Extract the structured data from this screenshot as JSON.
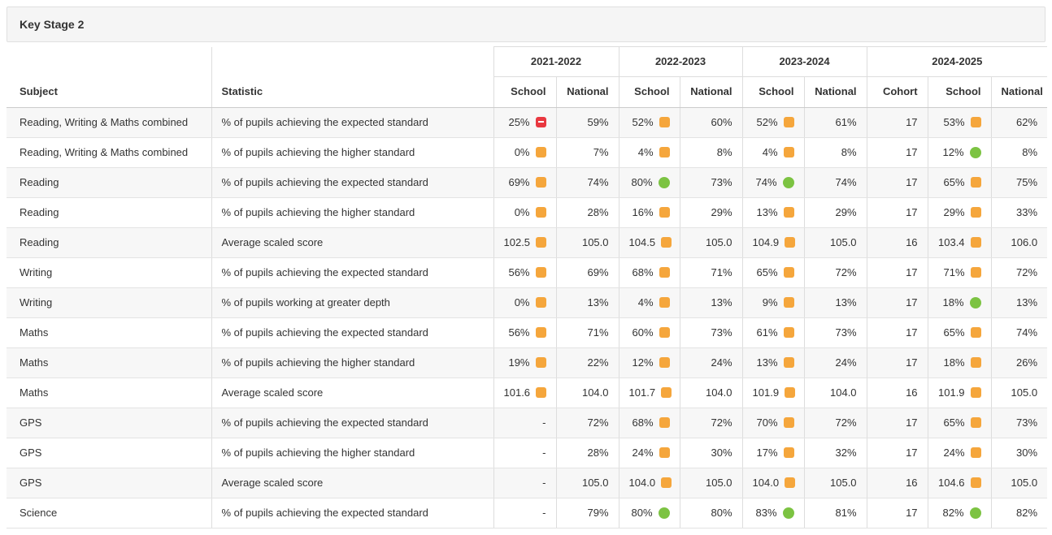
{
  "panel": {
    "title": "Key Stage 2"
  },
  "table": {
    "corner_headers": [
      "Subject",
      "Statistic"
    ],
    "year_groups": [
      {
        "label": "2021-2022",
        "columns": [
          "School",
          "National"
        ]
      },
      {
        "label": "2022-2023",
        "columns": [
          "School",
          "National"
        ]
      },
      {
        "label": "2023-2024",
        "columns": [
          "School",
          "National"
        ]
      },
      {
        "label": "2024-2025",
        "columns": [
          "Cohort",
          "School",
          "National"
        ]
      }
    ],
    "status_colors": {
      "orange": "#F5A63C",
      "green": "#7CC342",
      "red": "#E93840"
    },
    "rows": [
      {
        "subject": "Reading, Writing & Maths combined",
        "statistic": "% of pupils achieving the expected standard",
        "cells": [
          {
            "value": "25%",
            "icon": "red-minus"
          },
          {
            "value": "59%"
          },
          {
            "value": "52%",
            "icon": "orange-square"
          },
          {
            "value": "60%"
          },
          {
            "value": "52%",
            "icon": "orange-square"
          },
          {
            "value": "61%"
          },
          {
            "value": "17"
          },
          {
            "value": "53%",
            "icon": "orange-square"
          },
          {
            "value": "62%"
          }
        ]
      },
      {
        "subject": "Reading, Writing & Maths combined",
        "statistic": "% of pupils achieving the higher standard",
        "cells": [
          {
            "value": "0%",
            "icon": "orange-square"
          },
          {
            "value": "7%"
          },
          {
            "value": "4%",
            "icon": "orange-square"
          },
          {
            "value": "8%"
          },
          {
            "value": "4%",
            "icon": "orange-square"
          },
          {
            "value": "8%"
          },
          {
            "value": "17"
          },
          {
            "value": "12%",
            "icon": "green-circle"
          },
          {
            "value": "8%"
          }
        ]
      },
      {
        "subject": "Reading",
        "statistic": "% of pupils achieving the expected standard",
        "cells": [
          {
            "value": "69%",
            "icon": "orange-square"
          },
          {
            "value": "74%"
          },
          {
            "value": "80%",
            "icon": "green-circle"
          },
          {
            "value": "73%"
          },
          {
            "value": "74%",
            "icon": "green-circle"
          },
          {
            "value": "74%"
          },
          {
            "value": "17"
          },
          {
            "value": "65%",
            "icon": "orange-square"
          },
          {
            "value": "75%"
          }
        ]
      },
      {
        "subject": "Reading",
        "statistic": "% of pupils achieving the higher standard",
        "cells": [
          {
            "value": "0%",
            "icon": "orange-square"
          },
          {
            "value": "28%"
          },
          {
            "value": "16%",
            "icon": "orange-square"
          },
          {
            "value": "29%"
          },
          {
            "value": "13%",
            "icon": "orange-square"
          },
          {
            "value": "29%"
          },
          {
            "value": "17"
          },
          {
            "value": "29%",
            "icon": "orange-square"
          },
          {
            "value": "33%"
          }
        ]
      },
      {
        "subject": "Reading",
        "statistic": "Average scaled score",
        "cells": [
          {
            "value": "102.5",
            "icon": "orange-square"
          },
          {
            "value": "105.0"
          },
          {
            "value": "104.5",
            "icon": "orange-square"
          },
          {
            "value": "105.0"
          },
          {
            "value": "104.9",
            "icon": "orange-square"
          },
          {
            "value": "105.0"
          },
          {
            "value": "16"
          },
          {
            "value": "103.4",
            "icon": "orange-square"
          },
          {
            "value": "106.0"
          }
        ]
      },
      {
        "subject": "Writing",
        "statistic": "% of pupils achieving the expected standard",
        "cells": [
          {
            "value": "56%",
            "icon": "orange-square"
          },
          {
            "value": "69%"
          },
          {
            "value": "68%",
            "icon": "orange-square"
          },
          {
            "value": "71%"
          },
          {
            "value": "65%",
            "icon": "orange-square"
          },
          {
            "value": "72%"
          },
          {
            "value": "17"
          },
          {
            "value": "71%",
            "icon": "orange-square"
          },
          {
            "value": "72%"
          }
        ]
      },
      {
        "subject": "Writing",
        "statistic": "% of pupils working at greater depth",
        "cells": [
          {
            "value": "0%",
            "icon": "orange-square"
          },
          {
            "value": "13%"
          },
          {
            "value": "4%",
            "icon": "orange-square"
          },
          {
            "value": "13%"
          },
          {
            "value": "9%",
            "icon": "orange-square"
          },
          {
            "value": "13%"
          },
          {
            "value": "17"
          },
          {
            "value": "18%",
            "icon": "green-circle"
          },
          {
            "value": "13%"
          }
        ]
      },
      {
        "subject": "Maths",
        "statistic": "% of pupils achieving the expected standard",
        "cells": [
          {
            "value": "56%",
            "icon": "orange-square"
          },
          {
            "value": "71%"
          },
          {
            "value": "60%",
            "icon": "orange-square"
          },
          {
            "value": "73%"
          },
          {
            "value": "61%",
            "icon": "orange-square"
          },
          {
            "value": "73%"
          },
          {
            "value": "17"
          },
          {
            "value": "65%",
            "icon": "orange-square"
          },
          {
            "value": "74%"
          }
        ]
      },
      {
        "subject": "Maths",
        "statistic": "% of pupils achieving the higher standard",
        "cells": [
          {
            "value": "19%",
            "icon": "orange-square"
          },
          {
            "value": "22%"
          },
          {
            "value": "12%",
            "icon": "orange-square"
          },
          {
            "value": "24%"
          },
          {
            "value": "13%",
            "icon": "orange-square"
          },
          {
            "value": "24%"
          },
          {
            "value": "17"
          },
          {
            "value": "18%",
            "icon": "orange-square"
          },
          {
            "value": "26%"
          }
        ]
      },
      {
        "subject": "Maths",
        "statistic": "Average scaled score",
        "cells": [
          {
            "value": "101.6",
            "icon": "orange-square"
          },
          {
            "value": "104.0"
          },
          {
            "value": "101.7",
            "icon": "orange-square"
          },
          {
            "value": "104.0"
          },
          {
            "value": "101.9",
            "icon": "orange-square"
          },
          {
            "value": "104.0"
          },
          {
            "value": "16"
          },
          {
            "value": "101.9",
            "icon": "orange-square"
          },
          {
            "value": "105.0"
          }
        ]
      },
      {
        "subject": "GPS",
        "statistic": "% of pupils achieving the expected standard",
        "cells": [
          {
            "value": "-"
          },
          {
            "value": "72%"
          },
          {
            "value": "68%",
            "icon": "orange-square"
          },
          {
            "value": "72%"
          },
          {
            "value": "70%",
            "icon": "orange-square"
          },
          {
            "value": "72%"
          },
          {
            "value": "17"
          },
          {
            "value": "65%",
            "icon": "orange-square"
          },
          {
            "value": "73%"
          }
        ]
      },
      {
        "subject": "GPS",
        "statistic": "% of pupils achieving the higher standard",
        "cells": [
          {
            "value": "-"
          },
          {
            "value": "28%"
          },
          {
            "value": "24%",
            "icon": "orange-square"
          },
          {
            "value": "30%"
          },
          {
            "value": "17%",
            "icon": "orange-square"
          },
          {
            "value": "32%"
          },
          {
            "value": "17"
          },
          {
            "value": "24%",
            "icon": "orange-square"
          },
          {
            "value": "30%"
          }
        ]
      },
      {
        "subject": "GPS",
        "statistic": "Average scaled score",
        "cells": [
          {
            "value": "-"
          },
          {
            "value": "105.0"
          },
          {
            "value": "104.0",
            "icon": "orange-square"
          },
          {
            "value": "105.0"
          },
          {
            "value": "104.0",
            "icon": "orange-square"
          },
          {
            "value": "105.0"
          },
          {
            "value": "16"
          },
          {
            "value": "104.6",
            "icon": "orange-square"
          },
          {
            "value": "105.0"
          }
        ]
      },
      {
        "subject": "Science",
        "statistic": "% of pupils achieving the expected standard",
        "cells": [
          {
            "value": "-"
          },
          {
            "value": "79%"
          },
          {
            "value": "80%",
            "icon": "green-circle"
          },
          {
            "value": "80%"
          },
          {
            "value": "83%",
            "icon": "green-circle"
          },
          {
            "value": "81%"
          },
          {
            "value": "17"
          },
          {
            "value": "82%",
            "icon": "green-circle"
          },
          {
            "value": "82%"
          }
        ]
      }
    ]
  }
}
